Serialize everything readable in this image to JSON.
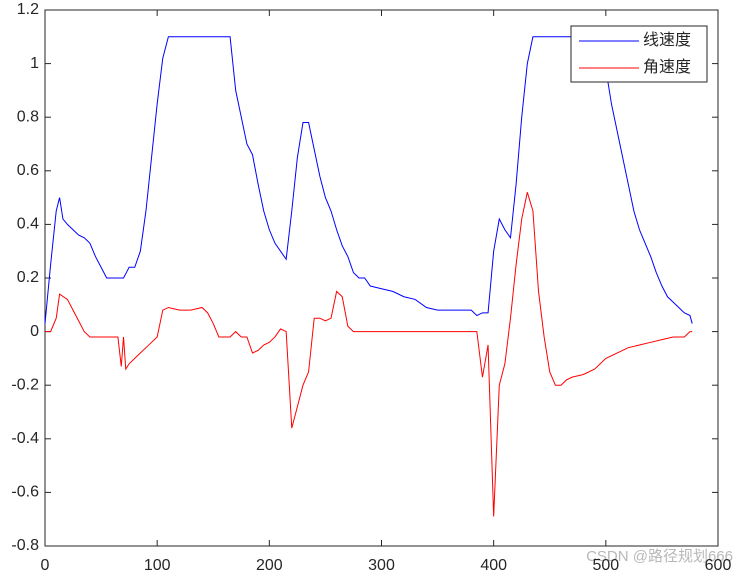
{
  "chart_data": {
    "type": "line",
    "xlim": [
      0,
      600
    ],
    "xticks": [
      0,
      100,
      200,
      300,
      400,
      500,
      600
    ],
    "ylim": [
      -0.8,
      1.2
    ],
    "yticks": [
      -0.8,
      -0.6,
      -0.4,
      -0.2,
      0,
      0.2,
      0.4,
      0.6,
      0.8,
      1,
      1.2
    ],
    "legend": "upper right",
    "watermark": "CSDN @路径规划666",
    "series": [
      {
        "name": "线速度",
        "color": "#0000ff",
        "x": [
          0,
          5,
          10,
          13,
          16,
          20,
          25,
          30,
          35,
          40,
          45,
          50,
          55,
          60,
          65,
          70,
          75,
          80,
          85,
          90,
          95,
          100,
          105,
          110,
          120,
          130,
          140,
          150,
          160,
          165,
          170,
          175,
          180,
          185,
          190,
          195,
          200,
          205,
          210,
          215,
          220,
          225,
          230,
          235,
          240,
          245,
          250,
          255,
          260,
          265,
          270,
          275,
          280,
          285,
          290,
          300,
          310,
          320,
          330,
          340,
          350,
          360,
          370,
          380,
          385,
          390,
          395,
          400,
          405,
          410,
          415,
          420,
          425,
          430,
          435,
          440,
          450,
          460,
          470,
          480,
          490,
          495,
          500,
          505,
          510,
          515,
          520,
          525,
          530,
          535,
          540,
          545,
          550,
          555,
          560,
          565,
          570,
          575,
          577
        ],
        "values": [
          0.03,
          0.25,
          0.45,
          0.5,
          0.42,
          0.4,
          0.38,
          0.36,
          0.35,
          0.33,
          0.28,
          0.24,
          0.2,
          0.2,
          0.2,
          0.2,
          0.24,
          0.24,
          0.3,
          0.45,
          0.65,
          0.85,
          1.02,
          1.1,
          1.1,
          1.1,
          1.1,
          1.1,
          1.1,
          1.1,
          0.9,
          0.8,
          0.7,
          0.66,
          0.55,
          0.45,
          0.38,
          0.33,
          0.3,
          0.27,
          0.45,
          0.65,
          0.78,
          0.78,
          0.68,
          0.58,
          0.5,
          0.45,
          0.38,
          0.32,
          0.28,
          0.22,
          0.2,
          0.2,
          0.17,
          0.16,
          0.15,
          0.13,
          0.12,
          0.09,
          0.08,
          0.08,
          0.08,
          0.08,
          0.06,
          0.07,
          0.07,
          0.3,
          0.42,
          0.38,
          0.35,
          0.55,
          0.8,
          1.0,
          1.1,
          1.1,
          1.1,
          1.1,
          1.1,
          1.1,
          1.1,
          1.05,
          0.98,
          0.85,
          0.75,
          0.65,
          0.55,
          0.45,
          0.38,
          0.33,
          0.28,
          0.22,
          0.17,
          0.13,
          0.11,
          0.09,
          0.07,
          0.06,
          0.03
        ]
      },
      {
        "name": "角速度",
        "color": "#ff0000",
        "x": [
          0,
          5,
          10,
          13,
          20,
          25,
          30,
          35,
          40,
          50,
          60,
          65,
          68,
          70,
          72,
          75,
          80,
          85,
          90,
          95,
          100,
          105,
          110,
          120,
          130,
          140,
          145,
          150,
          155,
          160,
          165,
          170,
          175,
          180,
          185,
          190,
          195,
          200,
          205,
          210,
          215,
          220,
          225,
          230,
          235,
          240,
          245,
          250,
          255,
          260,
          265,
          270,
          275,
          280,
          290,
          300,
          310,
          320,
          330,
          340,
          350,
          360,
          370,
          380,
          385,
          390,
          395,
          400,
          405,
          410,
          415,
          420,
          425,
          430,
          435,
          440,
          445,
          450,
          455,
          460,
          465,
          470,
          480,
          490,
          500,
          510,
          520,
          530,
          540,
          550,
          560,
          570,
          575,
          577
        ],
        "values": [
          0,
          0,
          0.05,
          0.14,
          0.12,
          0.08,
          0.04,
          0,
          -0.02,
          -0.02,
          -0.02,
          -0.02,
          -0.13,
          -0.02,
          -0.14,
          -0.12,
          -0.1,
          -0.08,
          -0.06,
          -0.04,
          -0.02,
          0.08,
          0.09,
          0.08,
          0.08,
          0.09,
          0.07,
          0.03,
          -0.02,
          -0.02,
          -0.02,
          0,
          -0.02,
          -0.02,
          -0.08,
          -0.07,
          -0.05,
          -0.04,
          -0.02,
          0.01,
          0,
          -0.36,
          -0.28,
          -0.2,
          -0.15,
          0.05,
          0.05,
          0.04,
          0.05,
          0.15,
          0.13,
          0.02,
          0,
          0,
          0,
          0,
          0,
          0,
          0,
          0,
          0,
          0,
          0,
          0,
          0,
          -0.17,
          -0.05,
          -0.69,
          -0.2,
          -0.12,
          0.05,
          0.25,
          0.42,
          0.52,
          0.45,
          0.15,
          -0.02,
          -0.15,
          -0.2,
          -0.2,
          -0.18,
          -0.17,
          -0.16,
          -0.14,
          -0.1,
          -0.08,
          -0.06,
          -0.05,
          -0.04,
          -0.03,
          -0.02,
          -0.02,
          0,
          0
        ]
      }
    ]
  }
}
